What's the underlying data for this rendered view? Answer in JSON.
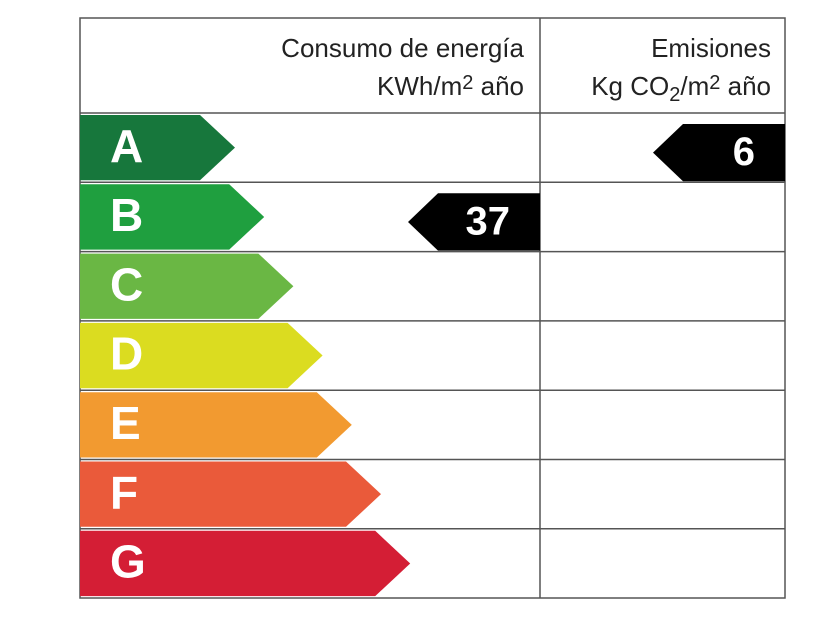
{
  "header": {
    "energy": {
      "title": "Consumo de energía",
      "unit": [
        "KWh/m",
        "2",
        " año"
      ]
    },
    "emissions": {
      "title": "Emisiones",
      "unit": [
        "Kg CO",
        "2",
        "/m",
        "2",
        " año"
      ]
    }
  },
  "rows": [
    {
      "grade": "A",
      "color": "#17773c",
      "emissions": 6
    },
    {
      "grade": "B",
      "color": "#1f9f3f",
      "energy": 37
    },
    {
      "grade": "C",
      "color": "#6ab744"
    },
    {
      "grade": "D",
      "color": "#dbdc20"
    },
    {
      "grade": "E",
      "color": "#f29a30"
    },
    {
      "grade": "F",
      "color": "#ea5a3a"
    },
    {
      "grade": "G",
      "color": "#d41e35"
    }
  ]
}
